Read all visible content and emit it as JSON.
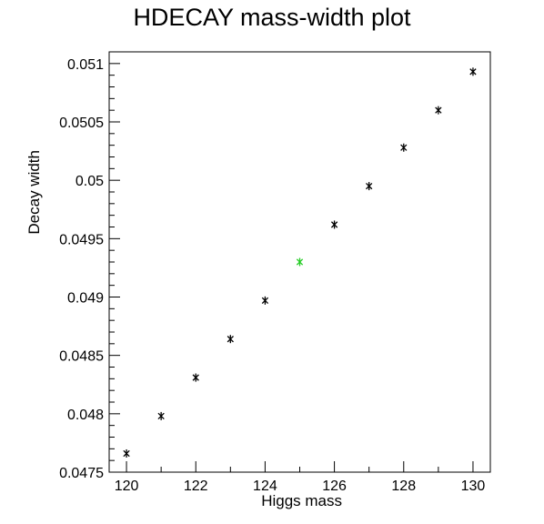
{
  "chart_data": {
    "type": "scatter",
    "title": "HDECAY mass-width plot",
    "xlabel": "Higgs mass",
    "ylabel": "Decay width",
    "xlim": [
      119.5,
      130.5
    ],
    "ylim": [
      0.0475,
      0.0511
    ],
    "x_ticks": [
      "120",
      "122",
      "124",
      "126",
      "128",
      "130"
    ],
    "y_ticks": [
      "0.0475",
      "0.048",
      "0.0485",
      "0.049",
      "0.0495",
      "0.05",
      "0.0505",
      "0.051"
    ],
    "grid": false,
    "marker": "asterisk",
    "default_color": "#000000",
    "highlight_color": "#22cc22",
    "points": [
      {
        "x": 120,
        "y": 0.04766
      },
      {
        "x": 121,
        "y": 0.04798
      },
      {
        "x": 122,
        "y": 0.04831
      },
      {
        "x": 123,
        "y": 0.04864
      },
      {
        "x": 124,
        "y": 0.04897
      },
      {
        "x": 125,
        "y": 0.0493,
        "highlight": true
      },
      {
        "x": 126,
        "y": 0.04962
      },
      {
        "x": 127,
        "y": 0.04995
      },
      {
        "x": 128,
        "y": 0.05028
      },
      {
        "x": 129,
        "y": 0.0506
      },
      {
        "x": 130,
        "y": 0.05093
      }
    ]
  }
}
